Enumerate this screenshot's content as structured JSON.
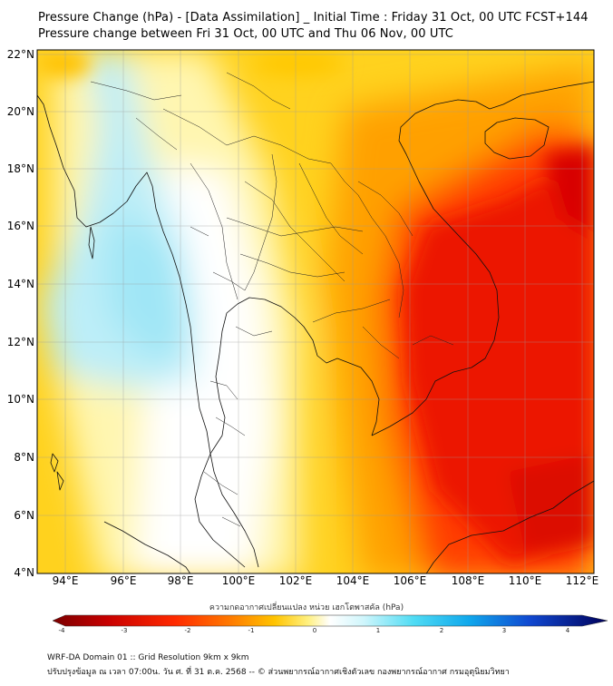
{
  "title": {
    "line1": "Pressure Change (hPa) - [Data Assimilation] _ Initial Time : Friday 31 Oct, 00 UTC FCST+144",
    "line2": "Pressure change between Fri 31 Oct, 00 UTC and Thu 06 Nov, 00 UTC"
  },
  "map": {
    "lat_ticks": [
      "22°N",
      "20°N",
      "18°N",
      "16°N",
      "14°N",
      "12°N",
      "10°N",
      "8°N",
      "6°N",
      "4°N"
    ],
    "lon_ticks": [
      "94°E",
      "96°E",
      "98°E",
      "100°E",
      "102°E",
      "104°E",
      "106°E",
      "108°E",
      "110°E",
      "112°E"
    ],
    "lat_range": [
      4,
      22
    ],
    "lon_range": [
      93,
      112.5
    ],
    "gridlines": true,
    "field": "pressure change (hPa)",
    "colors": {
      "strong_fall": "#e40000",
      "moderate_fall": "#ff5a00",
      "slight_fall": "#ffb400",
      "weak_fall": "#ffe840",
      "near_zero": "#ffffff",
      "rise": "#a8ecf8"
    }
  },
  "colorbar": {
    "label": "ความกดอากาศเปลี่ยนแปลง หน่วย เฮกโตพาสคัล (hPa)",
    "ticks": [
      "-4",
      "-3",
      "-2",
      "-1",
      "0",
      "1",
      "2",
      "3",
      "4"
    ],
    "range": [
      -4,
      4
    ],
    "colors": [
      "#7a0000",
      "#d40000",
      "#ff3000",
      "#ff8c00",
      "#ffd400",
      "#fff6a0",
      "#ffffff",
      "#c8f4fc",
      "#40d8f4",
      "#0096e6",
      "#1030c8",
      "#000070"
    ]
  },
  "footer": {
    "line1": "WRF-DA Domain 01 :: Grid Resolution 9km x 9km",
    "line2": "ปรับปรุงข้อมูล ณ เวลา 07:00น. วัน ศ. ที่ 31 ต.ค. 2568 -- © ส่วนพยากรณ์อากาศเชิงตัวเลข กองพยากรณ์อากาศ กรมอุตุนิยมวิทยา"
  }
}
